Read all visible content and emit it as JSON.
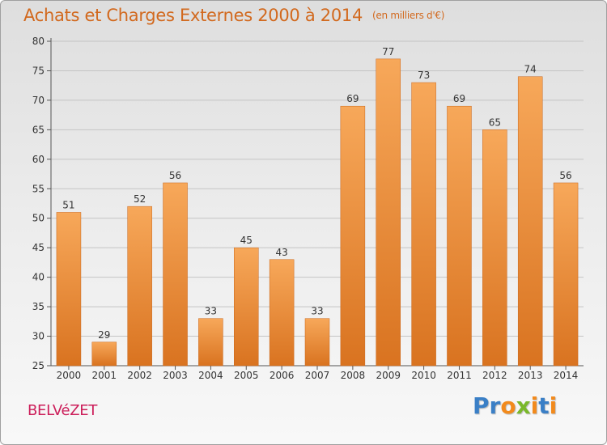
{
  "chart_data": {
    "type": "bar",
    "title": "Achats et Charges Externes 2000 à 2014",
    "unit_label": "(en milliers d'€)",
    "categories": [
      "2000",
      "2001",
      "2002",
      "2003",
      "2004",
      "2005",
      "2006",
      "2007",
      "2008",
      "2009",
      "2010",
      "2011",
      "2012",
      "2013",
      "2014"
    ],
    "values": [
      51,
      29,
      52,
      56,
      33,
      45,
      43,
      33,
      69,
      77,
      73,
      69,
      65,
      74,
      56
    ],
    "ylim": [
      25,
      80
    ],
    "yticks": [
      25,
      30,
      35,
      40,
      45,
      50,
      55,
      60,
      65,
      70,
      75,
      80
    ],
    "grid": true,
    "bar_color_light": "#f7a85a",
    "bar_color_dark": "#d97320",
    "xlabel": "",
    "ylabel": ""
  },
  "footer": {
    "place": "BELVéZET",
    "logo_letters": [
      "P",
      "r",
      "o",
      "x",
      "i",
      "t",
      "i"
    ],
    "logo_colors": [
      "#3a7fc6",
      "#3a7fc6",
      "#f28a1c",
      "#7ab82a",
      "#f28a1c",
      "#3a7fc6",
      "#f28a1c"
    ]
  },
  "colors": {
    "title": "#d2691e",
    "place": "#cc1e5a"
  }
}
